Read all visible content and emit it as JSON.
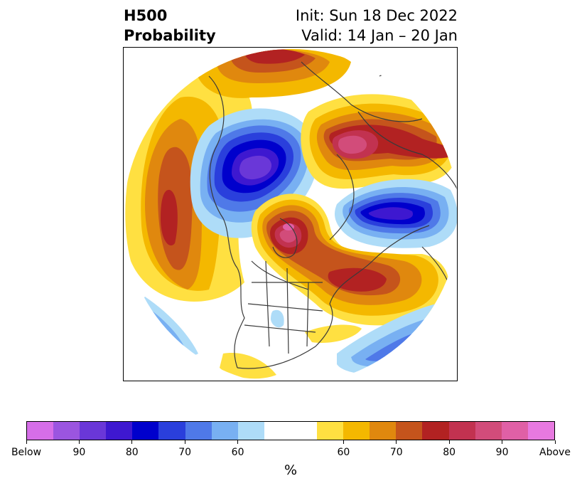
{
  "title": {
    "left_line1": "H500",
    "left_line2": "Probability",
    "right_line1": "Init: Sun 18 Dec 2022",
    "right_line2": "Valid: 14 Jan – 20 Jan"
  },
  "colorbar": {
    "unit_label": "%",
    "below_colors": [
      "#d66ee8",
      "#9b55e0",
      "#6a37d8",
      "#3e18d0",
      "#0000cc",
      "#2a3fdc",
      "#4f79e8",
      "#78b0f2",
      "#aedcf8"
    ],
    "neutral_color": "#ffffff",
    "above_colors": [
      "#ffe041",
      "#f4b800",
      "#e0880e",
      "#c5541c",
      "#b22222",
      "#c23250",
      "#d24c7a",
      "#e060a6",
      "#e779e0"
    ],
    "tick_labels": [
      "Below",
      "90",
      "80",
      "70",
      "60",
      "60",
      "70",
      "80",
      "90",
      "Above"
    ]
  },
  "map": {
    "projection": "north-polar-stereographic",
    "variable": "500 hPa height anomaly probability"
  }
}
